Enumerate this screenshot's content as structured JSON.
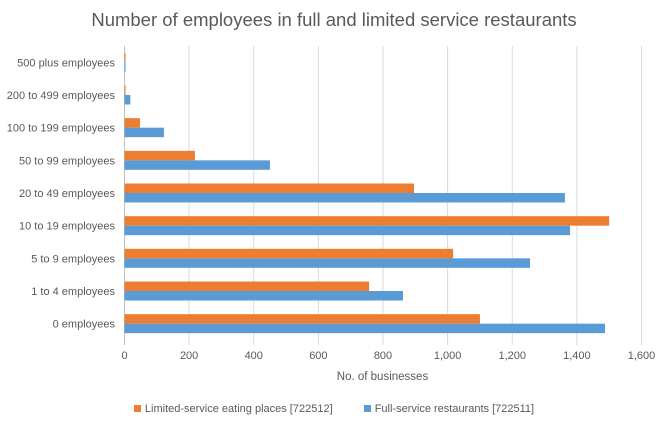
{
  "chart_data": {
    "type": "bar",
    "orientation": "horizontal",
    "title": "Number of employees in full and limited service restaurants",
    "xlabel": "No. of businesses",
    "ylabel": "",
    "xlim": [
      0,
      1600
    ],
    "xticks": [
      0,
      200,
      400,
      600,
      800,
      1000,
      1200,
      1400,
      1600
    ],
    "xtick_labels": [
      "0",
      "200",
      "400",
      "600",
      "800",
      "1,000",
      "1,200",
      "1,400",
      "1,600"
    ],
    "grid": true,
    "legend_position": "bottom",
    "categories": [
      "0 employees",
      "1 to 4 employees",
      "5 to 9 employees",
      "10 to 19 employees",
      "20 to 49 employees",
      "50 to 99 employees",
      "100 to 199 employees",
      "200 to 499 employees",
      "500 plus employees"
    ],
    "series": [
      {
        "name": "Limited-service eating places [722512]",
        "color": "#ED7D31",
        "values": [
          1100,
          757,
          1017,
          1500,
          896,
          218,
          48,
          3,
          3
        ]
      },
      {
        "name": "Full-service restaurants [722511]",
        "color": "#5B9BD5",
        "values": [
          1487,
          862,
          1255,
          1379,
          1363,
          450,
          122,
          18,
          3
        ]
      }
    ]
  }
}
